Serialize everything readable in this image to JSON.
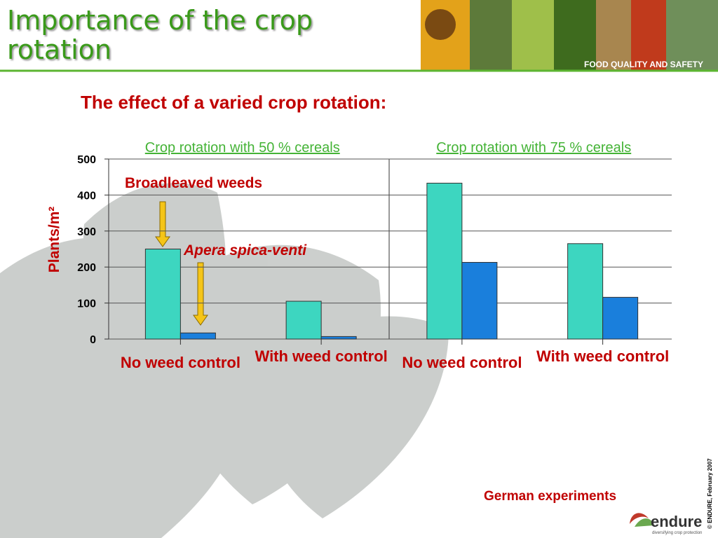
{
  "header": {
    "title": "Importance of the crop rotation",
    "banner": "FOOD QUALITY AND SAFETY"
  },
  "subtitle": "The effect of a varied crop rotation:",
  "chart_data": {
    "type": "bar",
    "groups": [
      "Crop rotation with 50 % cereals",
      "Crop rotation with 75 % cereals"
    ],
    "categories": [
      "No weed control",
      "With weed control",
      "No weed control",
      "With weed control"
    ],
    "series": [
      {
        "name": "Broadleaved weeds",
        "color": "#3dd6c0",
        "values": [
          250,
          105,
          433,
          265
        ]
      },
      {
        "name": "Apera spica-venti",
        "color": "#1a7fdc",
        "values": [
          17,
          7,
          213,
          116
        ]
      }
    ],
    "ylabel": "Plants/m²",
    "ylim": [
      0,
      500
    ],
    "yticks": [
      0,
      100,
      200,
      300,
      400,
      500
    ],
    "grid": true
  },
  "footer": {
    "note": "German experiments",
    "logo": "endure",
    "tagline": "diversifying crop protection",
    "copyright": "© ENDURE, February 2007"
  }
}
